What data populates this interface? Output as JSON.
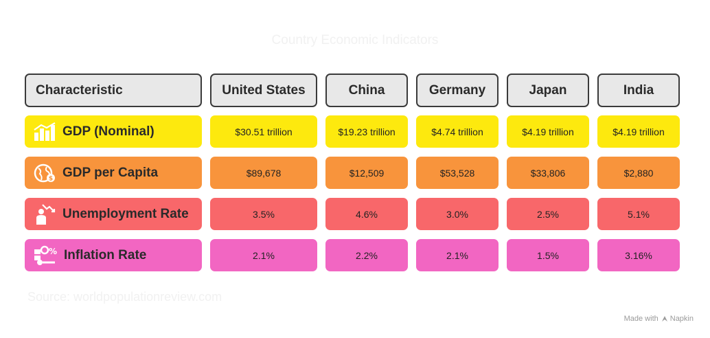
{
  "title": "Country Economic Indicators",
  "header": {
    "characteristic": "Characteristic",
    "countries": [
      "United States",
      "China",
      "Germany",
      "Japan",
      "India"
    ]
  },
  "rows": [
    {
      "label": "GDP (Nominal)",
      "icon": "bar-chart-icon",
      "color": "#fde90e",
      "values": [
        "$30.51 trillion",
        "$19.23 trillion",
        "$4.74 trillion",
        "$4.19 trillion",
        "$4.19 trillion"
      ]
    },
    {
      "label": "GDP per Capita",
      "icon": "globe-dollar-icon",
      "color": "#f8943c",
      "values": [
        "$89,678",
        "$12,509",
        "$53,528",
        "$33,806",
        "$2,880"
      ]
    },
    {
      "label": "Unemployment Rate",
      "icon": "person-down-arrow-icon",
      "color": "#f8676a",
      "values": [
        "3.5%",
        "4.6%",
        "3.0%",
        "2.5%",
        "5.1%"
      ]
    },
    {
      "label": "Inflation Rate",
      "icon": "inflation-percent-icon",
      "color": "#f266c2",
      "values": [
        "2.1%",
        "2.2%",
        "2.1%",
        "1.5%",
        "3.16%"
      ]
    }
  ],
  "source": "Source: worldpopulationreview.com",
  "footer": {
    "made_with": "Made with",
    "brand": "Napkin"
  }
}
